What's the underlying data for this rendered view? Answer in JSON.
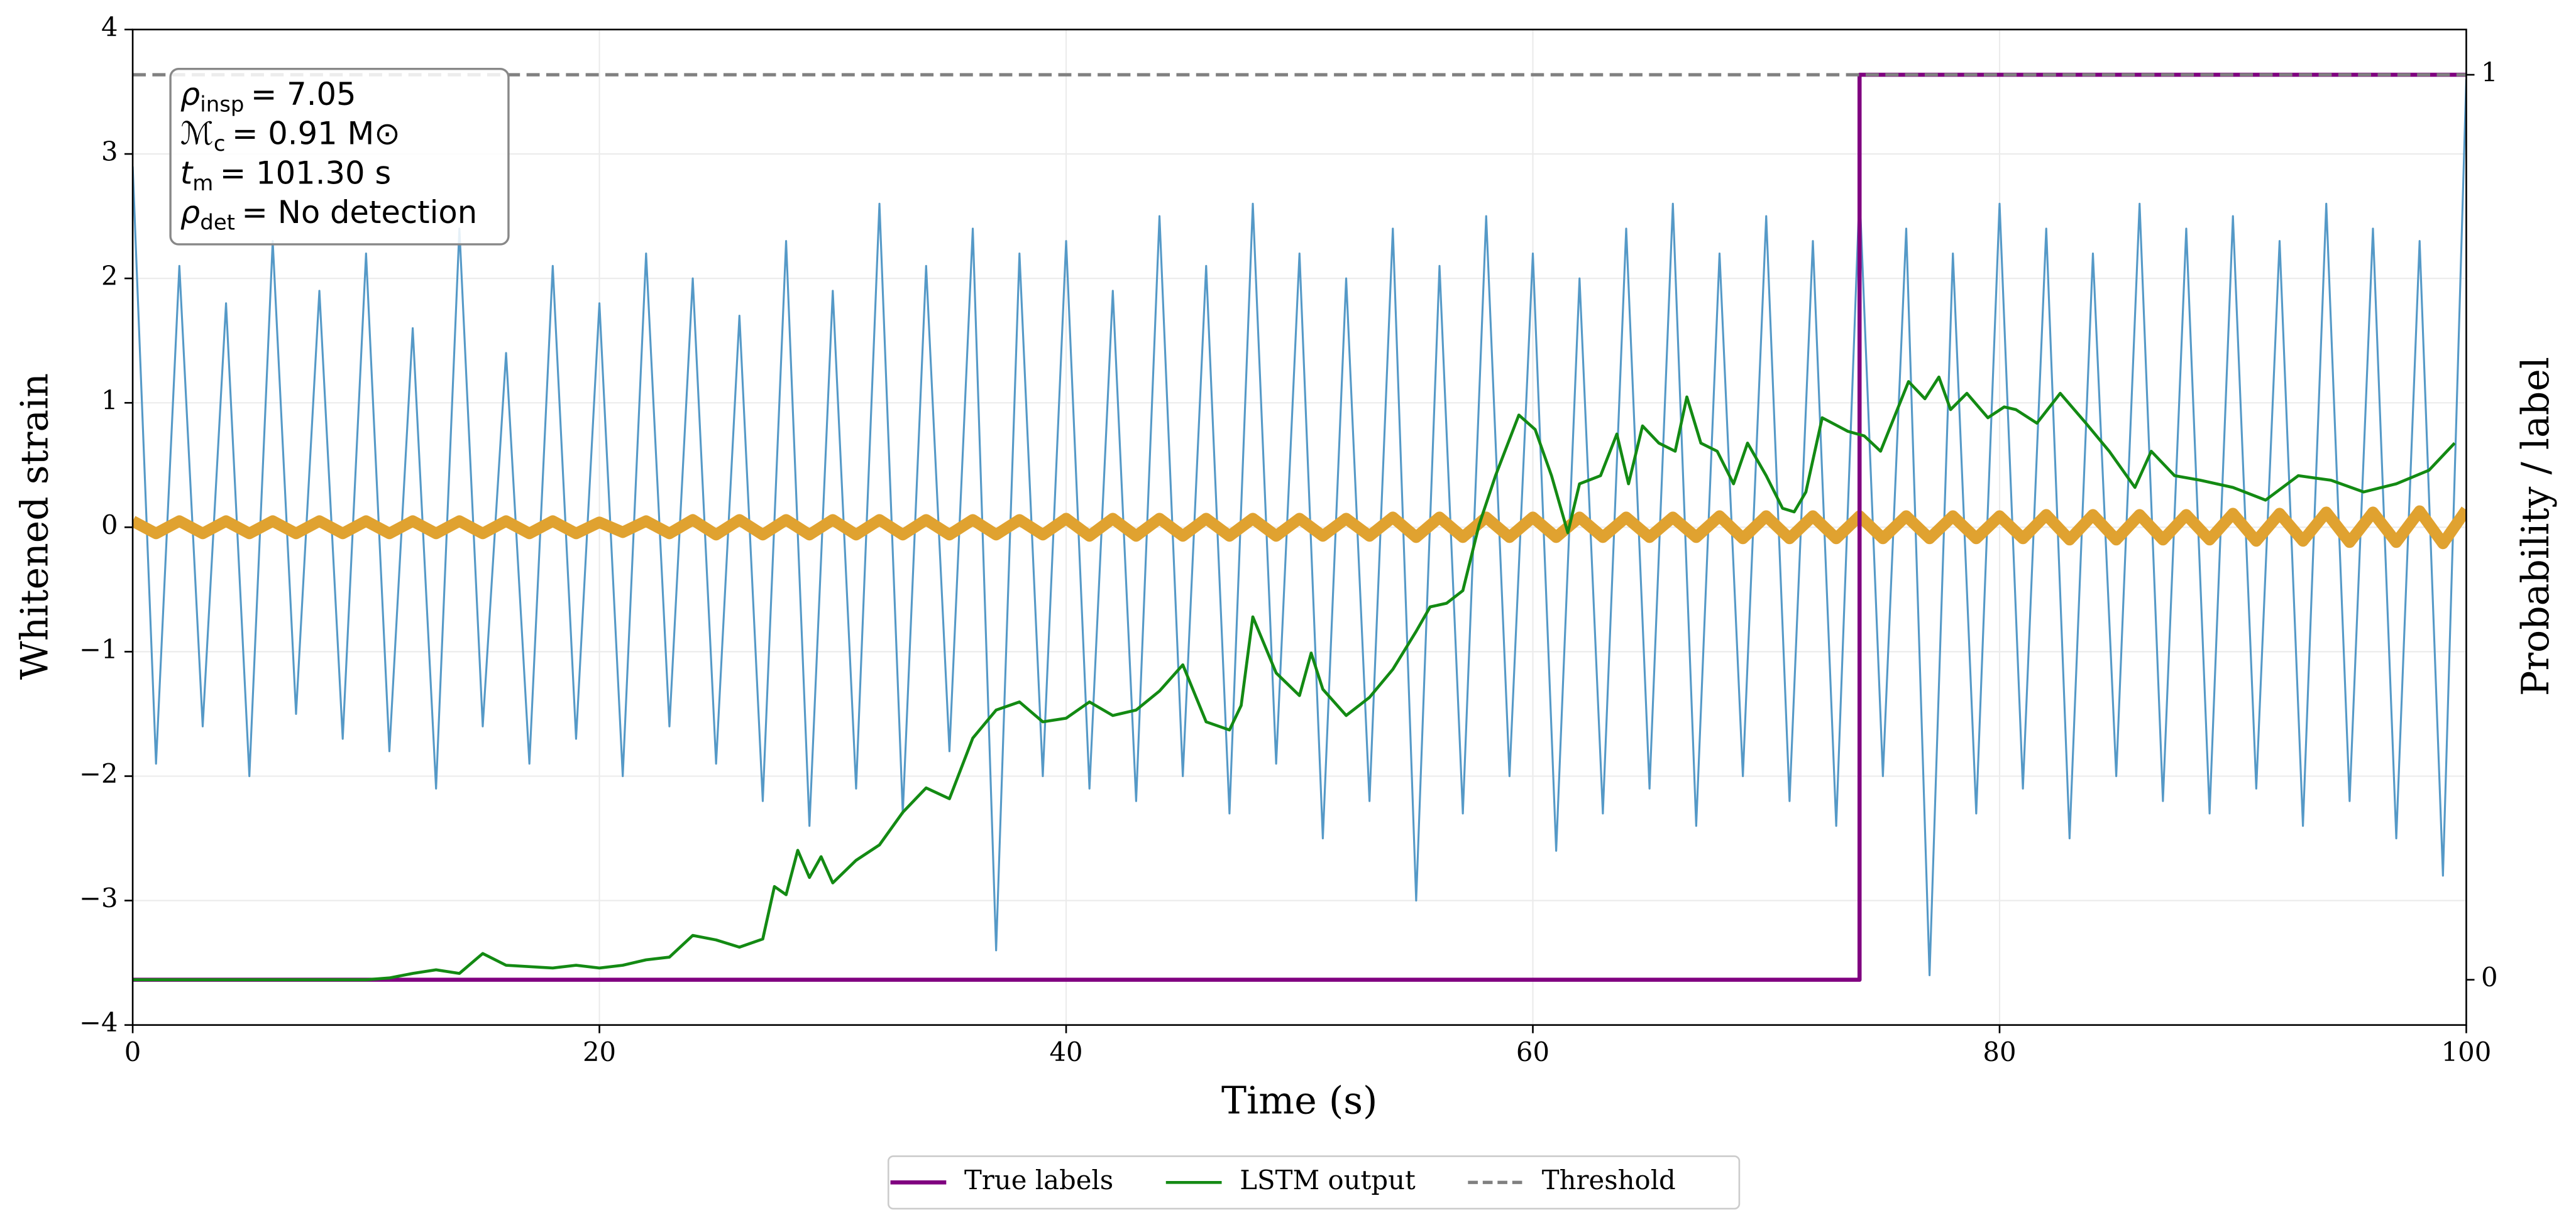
{
  "chart_data": {
    "type": "line",
    "xlabel": "Time (s)",
    "ylabel": "Whitened strain",
    "y2label": "Probability / label",
    "xlim": [
      0,
      100
    ],
    "ylim": [
      -4,
      4
    ],
    "y2lim": [
      -0.05,
      1.05
    ],
    "xticks": [
      0,
      20,
      40,
      60,
      80,
      100
    ],
    "yticks": [
      {
        "value": -4,
        "label": "−4"
      },
      {
        "value": -3,
        "label": "−3"
      },
      {
        "value": -2,
        "label": "−2"
      },
      {
        "value": -1,
        "label": "−1"
      },
      0,
      1,
      2,
      3,
      4
    ],
    "y2ticks": [
      0,
      1
    ],
    "grid": true,
    "legend": "lower center",
    "annotation": [
      {
        "main": "ρ",
        "sub": "insp",
        "value": "= 7.05"
      },
      {
        "main": "ℳ",
        "sub": "c",
        "value": "= 0.91 M⊙"
      },
      {
        "main": "t",
        "sub": "m",
        "value": "= 101.30 s"
      },
      {
        "main": "ρ",
        "sub": "det",
        "value": "= No detection"
      }
    ],
    "series": [
      {
        "color": "#5599c7",
        "width": 1.2,
        "x": [
          0,
          1,
          2,
          3,
          4,
          5,
          6,
          7,
          8,
          9,
          10,
          11,
          12,
          13,
          14,
          15,
          16,
          17,
          18,
          19,
          20,
          21,
          22,
          23,
          24,
          25,
          26,
          27,
          28,
          29,
          30,
          31,
          32,
          33,
          34,
          35,
          36,
          37,
          38,
          39,
          40,
          41,
          42,
          43,
          44,
          45,
          46,
          47,
          48,
          49,
          50,
          51,
          52,
          53,
          54,
          55,
          56,
          57,
          58,
          59,
          60,
          61,
          62,
          63,
          64,
          65,
          66,
          67,
          68,
          69,
          70,
          71,
          72,
          73,
          74,
          75,
          76,
          77,
          78,
          79,
          80,
          81,
          82,
          83,
          84,
          85,
          86,
          87,
          88,
          89,
          90,
          91,
          92,
          93,
          94,
          95,
          96,
          97,
          98,
          99,
          100
        ],
        "values": [
          2.9,
          -1.9,
          2.1,
          -1.6,
          1.8,
          -2.0,
          2.3,
          -1.5,
          1.9,
          -1.7,
          2.2,
          -1.8,
          1.6,
          -2.1,
          2.4,
          -1.6,
          1.4,
          -1.9,
          2.1,
          -1.7,
          1.8,
          -2.0,
          2.2,
          -1.6,
          2.0,
          -1.9,
          1.7,
          -2.2,
          2.3,
          -2.4,
          1.9,
          -2.1,
          2.6,
          -2.3,
          2.1,
          -1.8,
          2.4,
          -3.4,
          2.2,
          -2.0,
          2.3,
          -2.1,
          1.9,
          -2.2,
          2.5,
          -2.0,
          2.1,
          -2.3,
          2.6,
          -1.9,
          2.2,
          -2.5,
          2.0,
          -2.2,
          2.4,
          -3.0,
          2.1,
          -2.3,
          2.5,
          -2.0,
          2.2,
          -2.6,
          2.0,
          -2.3,
          2.4,
          -2.1,
          2.6,
          -2.4,
          2.2,
          -2.0,
          2.5,
          -2.2,
          2.3,
          -2.4,
          2.7,
          -2.0,
          2.4,
          -3.6,
          2.2,
          -2.3,
          2.6,
          -2.1,
          2.4,
          -2.5,
          2.2,
          -2.0,
          2.6,
          -2.2,
          2.4,
          -2.3,
          2.5,
          -2.1,
          2.3,
          -2.4,
          2.6,
          -2.2,
          2.4,
          -2.5,
          2.3,
          -2.8,
          3.6
        ]
      },
      {
        "color": "#e0a230",
        "width": 7,
        "x": [
          0,
          1,
          2,
          3,
          4,
          5,
          6,
          7,
          8,
          9,
          10,
          11,
          12,
          13,
          14,
          15,
          16,
          17,
          18,
          19,
          20,
          21,
          22,
          23,
          24,
          25,
          26,
          27,
          28,
          29,
          30,
          31,
          32,
          33,
          34,
          35,
          36,
          37,
          38,
          39,
          40,
          41,
          42,
          43,
          44,
          45,
          46,
          47,
          48,
          49,
          50,
          51,
          52,
          53,
          54,
          55,
          56,
          57,
          58,
          59,
          60,
          61,
          62,
          63,
          64,
          65,
          66,
          67,
          68,
          69,
          70,
          71,
          72,
          73,
          74,
          75,
          76,
          77,
          78,
          79,
          80,
          81,
          82,
          83,
          84,
          85,
          86,
          87,
          88,
          89,
          90,
          91,
          92,
          93,
          94,
          95,
          96,
          97,
          98,
          99,
          100
        ],
        "values": [
          0.05,
          -0.05,
          0.05,
          -0.05,
          0.05,
          -0.05,
          0.05,
          -0.05,
          0.05,
          -0.05,
          0.05,
          -0.05,
          0.05,
          -0.05,
          0.05,
          -0.05,
          0.05,
          -0.05,
          0.05,
          -0.05,
          0.04,
          -0.04,
          0.05,
          -0.05,
          0.06,
          -0.06,
          0.06,
          -0.06,
          0.06,
          -0.06,
          0.06,
          -0.06,
          0.06,
          -0.06,
          0.06,
          -0.06,
          0.06,
          -0.06,
          0.06,
          -0.06,
          0.07,
          -0.07,
          0.07,
          -0.07,
          0.07,
          -0.07,
          0.07,
          -0.07,
          0.07,
          -0.07,
          0.07,
          -0.07,
          0.07,
          -0.07,
          0.08,
          -0.08,
          0.08,
          -0.08,
          0.08,
          -0.08,
          0.08,
          -0.08,
          0.08,
          -0.08,
          0.08,
          -0.08,
          0.08,
          -0.08,
          0.09,
          -0.09,
          0.09,
          -0.09,
          0.09,
          -0.09,
          0.09,
          -0.09,
          0.09,
          -0.09,
          0.09,
          -0.09,
          0.09,
          -0.09,
          0.1,
          -0.1,
          0.1,
          -0.1,
          0.1,
          -0.1,
          0.1,
          -0.1,
          0.11,
          -0.11,
          0.11,
          -0.11,
          0.12,
          -0.12,
          0.12,
          -0.12,
          0.13,
          -0.13,
          0.14
        ]
      },
      {
        "name": "True labels",
        "color": "#800080",
        "width": 2.5,
        "axis": "y2",
        "x": [
          0,
          74,
          74,
          100
        ],
        "values": [
          0,
          0,
          1,
          1
        ]
      },
      {
        "name": "LSTM output",
        "color": "#138a13",
        "width": 1.8,
        "axis": "y2",
        "x": [
          0,
          10,
          11,
          12,
          13,
          14,
          15,
          16,
          18,
          19,
          20,
          21,
          22,
          23,
          24,
          25,
          26,
          27,
          27.5,
          28,
          28.5,
          29,
          29.5,
          30,
          31,
          32,
          33,
          34,
          35,
          36,
          37,
          38,
          39,
          40,
          41,
          42,
          43,
          44,
          45,
          46,
          47,
          47.5,
          48,
          49,
          50,
          50.5,
          51,
          52,
          53,
          54,
          55,
          55.6,
          56.3,
          57,
          57.7,
          58.4,
          59.4,
          60.1,
          60.8,
          61.5,
          62,
          62.9,
          63.6,
          64.1,
          64.7,
          65.4,
          66.1,
          66.6,
          67.2,
          67.9,
          68.6,
          69.2,
          70,
          70.7,
          71.2,
          71.7,
          72.4,
          73.5,
          74.2,
          74.9,
          76.1,
          76.8,
          77.4,
          77.9,
          78.6,
          79.5,
          80.2,
          80.7,
          81.6,
          82.6,
          83.7,
          84.7,
          85.8,
          86.5,
          87.5,
          88.6,
          90,
          91.4,
          92.8,
          94.2,
          95.6,
          97,
          98.4,
          99.5
        ],
        "values": [
          0,
          0,
          0.002,
          0.007,
          0.011,
          0.007,
          0.029,
          0.016,
          0.013,
          0.016,
          0.013,
          0.016,
          0.022,
          0.025,
          0.049,
          0.044,
          0.036,
          0.045,
          0.103,
          0.094,
          0.143,
          0.113,
          0.136,
          0.107,
          0.132,
          0.149,
          0.185,
          0.212,
          0.2,
          0.267,
          0.298,
          0.307,
          0.285,
          0.289,
          0.307,
          0.292,
          0.298,
          0.319,
          0.348,
          0.285,
          0.276,
          0.303,
          0.401,
          0.339,
          0.314,
          0.361,
          0.321,
          0.292,
          0.312,
          0.343,
          0.385,
          0.412,
          0.416,
          0.43,
          0.503,
          0.557,
          0.624,
          0.608,
          0.557,
          0.494,
          0.548,
          0.557,
          0.603,
          0.548,
          0.612,
          0.593,
          0.584,
          0.644,
          0.593,
          0.584,
          0.548,
          0.593,
          0.557,
          0.521,
          0.517,
          0.539,
          0.621,
          0.606,
          0.601,
          0.584,
          0.661,
          0.642,
          0.666,
          0.63,
          0.648,
          0.621,
          0.633,
          0.63,
          0.615,
          0.648,
          0.615,
          0.584,
          0.544,
          0.584,
          0.557,
          0.552,
          0.544,
          0.53,
          0.557,
          0.552,
          0.539,
          0.548,
          0.563,
          0.593
        ]
      },
      {
        "name": "Threshold",
        "color": "#808080",
        "width": 2,
        "dashed": true,
        "axis": "y2",
        "x": [
          0,
          100
        ],
        "values": [
          1,
          1
        ]
      }
    ]
  }
}
